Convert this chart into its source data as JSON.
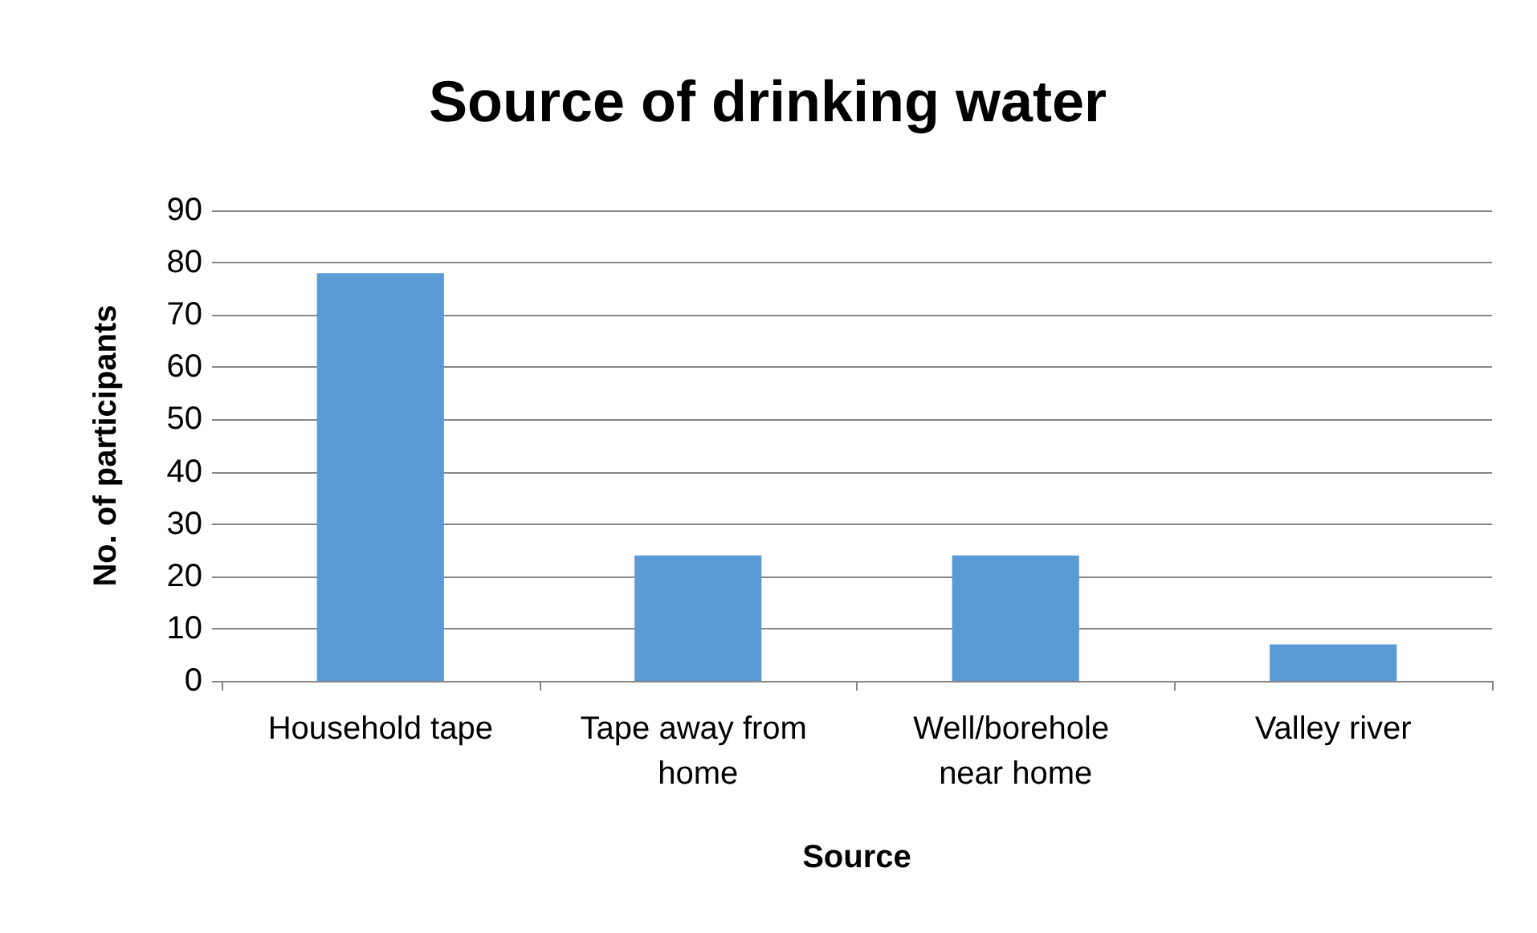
{
  "chart_data": {
    "type": "bar",
    "title": "Source of drinking water",
    "xlabel": "Source",
    "ylabel": "No. of participants",
    "categories": [
      "Household tape",
      "Tape away from home",
      "Well/borehole near home",
      "Valley river"
    ],
    "series": [
      {
        "color": "#5b9bd5",
        "values": [
          78,
          24,
          24,
          7
        ]
      }
    ],
    "ylim": [
      0,
      90
    ],
    "yticks": [
      0,
      10,
      20,
      30,
      40,
      50,
      60,
      70,
      80,
      90
    ],
    "grid": "y"
  }
}
